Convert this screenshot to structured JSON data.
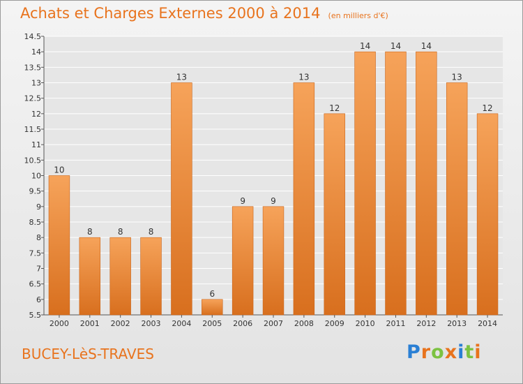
{
  "header": {
    "title": "Achats et Charges Externes 2000 à 2014",
    "subtitle": "(en milliers d'€)"
  },
  "footer": {
    "commune": "BUCEY-LèS-TRAVES",
    "logo_letters": [
      "P",
      "r",
      "o",
      "x",
      "i",
      "t",
      "i"
    ],
    "logo_colors": [
      "#2a7fd4",
      "#e8731d",
      "#7cc242",
      "#e8731d",
      "#2a7fd4",
      "#7cc242",
      "#e8731d"
    ]
  },
  "colors": {
    "bar_top": "#f6a35a",
    "bar_bottom": "#d86f1e",
    "accent": "#e8731d",
    "grid": "#ffffff"
  },
  "chart_data": {
    "type": "bar",
    "title": "Achats et Charges Externes 2000 à 2014",
    "subtitle": "(en milliers d'€)",
    "categories": [
      "2000",
      "2001",
      "2002",
      "2003",
      "2004",
      "2005",
      "2006",
      "2007",
      "2008",
      "2009",
      "2010",
      "2011",
      "2012",
      "2013",
      "2014"
    ],
    "values": [
      10,
      8,
      8,
      8,
      13,
      6,
      9,
      9,
      13,
      12,
      14,
      14,
      14,
      13,
      12
    ],
    "ylim": [
      5.5,
      14.5
    ],
    "yticks": [
      "5.5",
      "6",
      "6.5",
      "7",
      "7.5",
      "8",
      "8.5",
      "9",
      "9.5",
      "10",
      "10.5",
      "11",
      "11.5",
      "12",
      "12.5",
      "13",
      "13.5",
      "14",
      "14.5"
    ],
    "grid": true,
    "legend": "none"
  }
}
